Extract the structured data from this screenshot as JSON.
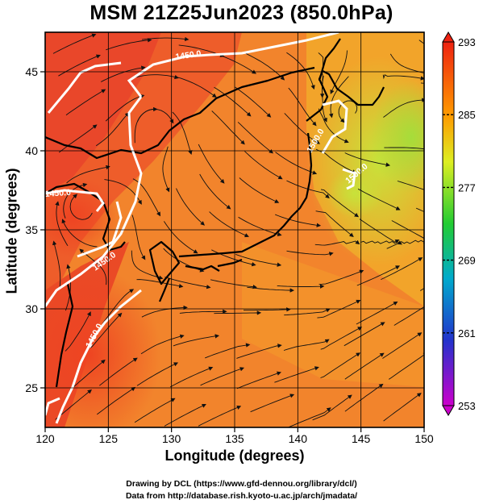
{
  "title": "MSM 21Z25Jun2023 (850.0hPa)",
  "map": {
    "xlabel": "Longitude (degrees)",
    "ylabel": "Latitude  (degrees)",
    "lon_ticks": [
      "120",
      "125",
      "130",
      "135",
      "140",
      "145",
      "150"
    ],
    "lat_ticks": [
      "25",
      "30",
      "35",
      "40",
      "45"
    ],
    "lon_range": [
      120,
      150
    ],
    "lat_range": [
      22.5,
      47.5
    ],
    "grid": true,
    "field": "temperature shading with wind streamlines",
    "contour_labels": [
      "1450.0",
      "1450.0",
      "1450.0",
      "1450.0",
      "1500.0",
      "1500.0"
    ]
  },
  "colorbar": {
    "ticks": [
      "293",
      "285",
      "277",
      "269",
      "261",
      "253"
    ],
    "range": [
      253,
      293
    ],
    "colors": [
      "#cc00cc",
      "#2233cc",
      "#00aacc",
      "#22cc33",
      "#ddee22",
      "#ff9900",
      "#ee2211"
    ]
  },
  "credits": {
    "drawing": "Drawing by DCL (https://www.gfd-dennou.org/library/dcl/)",
    "data": "Data from http://database.rish.kyoto-u.ac.jp/arch/jmadata/"
  }
}
